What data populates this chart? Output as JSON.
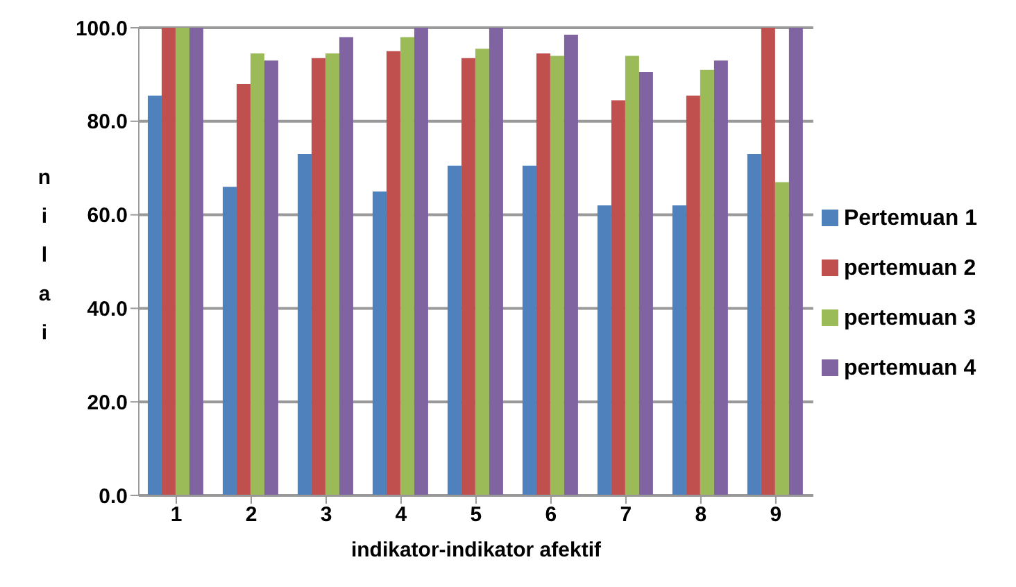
{
  "chart_data": {
    "type": "bar",
    "xlabel": "indikator-indikator afektif",
    "ylabel": "nilai",
    "categories": [
      "1",
      "2",
      "3",
      "4",
      "5",
      "6",
      "7",
      "8",
      "9"
    ],
    "series": [
      {
        "name": "Pertemuan 1",
        "color": "#4f81bd",
        "values": [
          85.5,
          66,
          73,
          65,
          70.5,
          70.5,
          62,
          62,
          73
        ]
      },
      {
        "name": "pertemuan 2",
        "color": "#c0504d",
        "values": [
          100,
          88,
          93.5,
          95,
          93.5,
          94.5,
          84.5,
          85.5,
          100
        ]
      },
      {
        "name": "pertemuan 3",
        "color": "#9bbb59",
        "values": [
          100,
          94.5,
          94.5,
          98,
          95.5,
          94,
          94,
          91,
          67
        ]
      },
      {
        "name": "pertemuan 4",
        "color": "#8064a2",
        "values": [
          100,
          93,
          98,
          100,
          100,
          98.5,
          90.5,
          93,
          100
        ]
      }
    ],
    "ylim": [
      0,
      100
    ],
    "yticks": [
      {
        "value": 0,
        "label": "0.0"
      },
      {
        "value": 20,
        "label": "20.0"
      },
      {
        "value": 40,
        "label": "40.0"
      },
      {
        "value": 60,
        "label": "60.0"
      },
      {
        "value": 80,
        "label": "80.0"
      },
      {
        "value": 100,
        "label": "100.0"
      }
    ],
    "grid": "y",
    "legend": "right"
  }
}
